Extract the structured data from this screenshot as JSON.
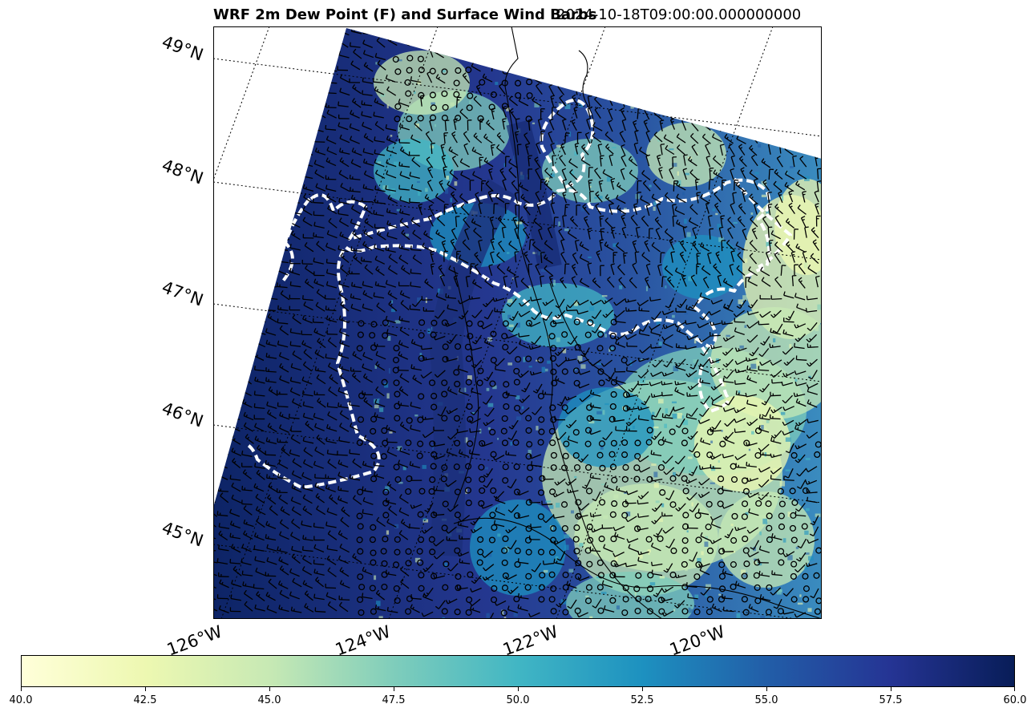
{
  "title": {
    "main": "WRF 2m Dew Point (F) and Surface Wind Barbs",
    "time": "2024-10-18T09:00:00.000000000"
  },
  "map": {
    "lat_labels": [
      "49°N",
      "48°N",
      "47°N",
      "46°N",
      "45°N"
    ],
    "lon_labels": [
      "126°W",
      "124°W",
      "122°W",
      "120°W"
    ],
    "colormap_name": "YlGnBu",
    "outline_color": "#ffffff"
  },
  "colorbar": {
    "min": 40.0,
    "max": 60.0,
    "tick_labels": [
      "40.0",
      "42.5",
      "45.0",
      "47.5",
      "50.0",
      "52.5",
      "55.0",
      "57.5",
      "60.0"
    ],
    "colors": [
      "#ffffd9",
      "#edf8b1",
      "#c7e9b4",
      "#7fcdbb",
      "#41b6c4",
      "#1d91c0",
      "#225ea8",
      "#253494",
      "#081d58"
    ]
  }
}
